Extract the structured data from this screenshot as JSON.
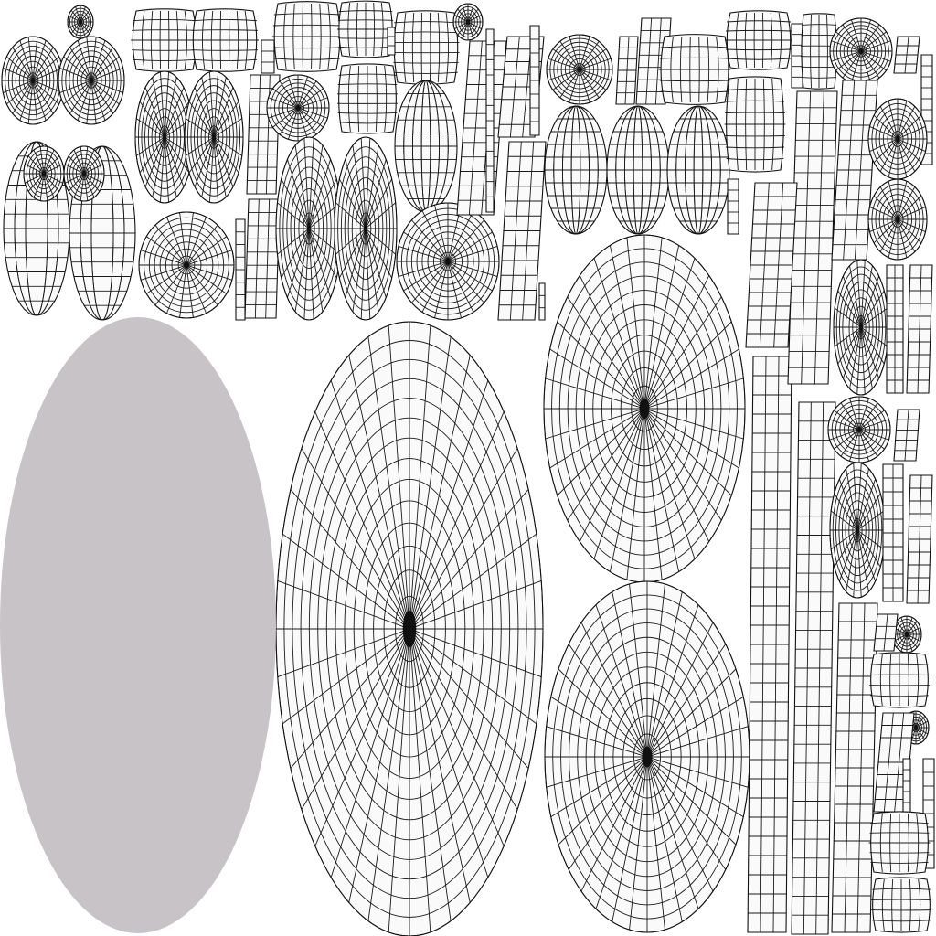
{
  "uv_layout": {
    "background_color": "#ffffff",
    "wireframe_color": "#111111",
    "island_fill_color": "#fafafa",
    "selected_island_color": "#c8c3c6",
    "texture_space": "UV 0–1"
  }
}
